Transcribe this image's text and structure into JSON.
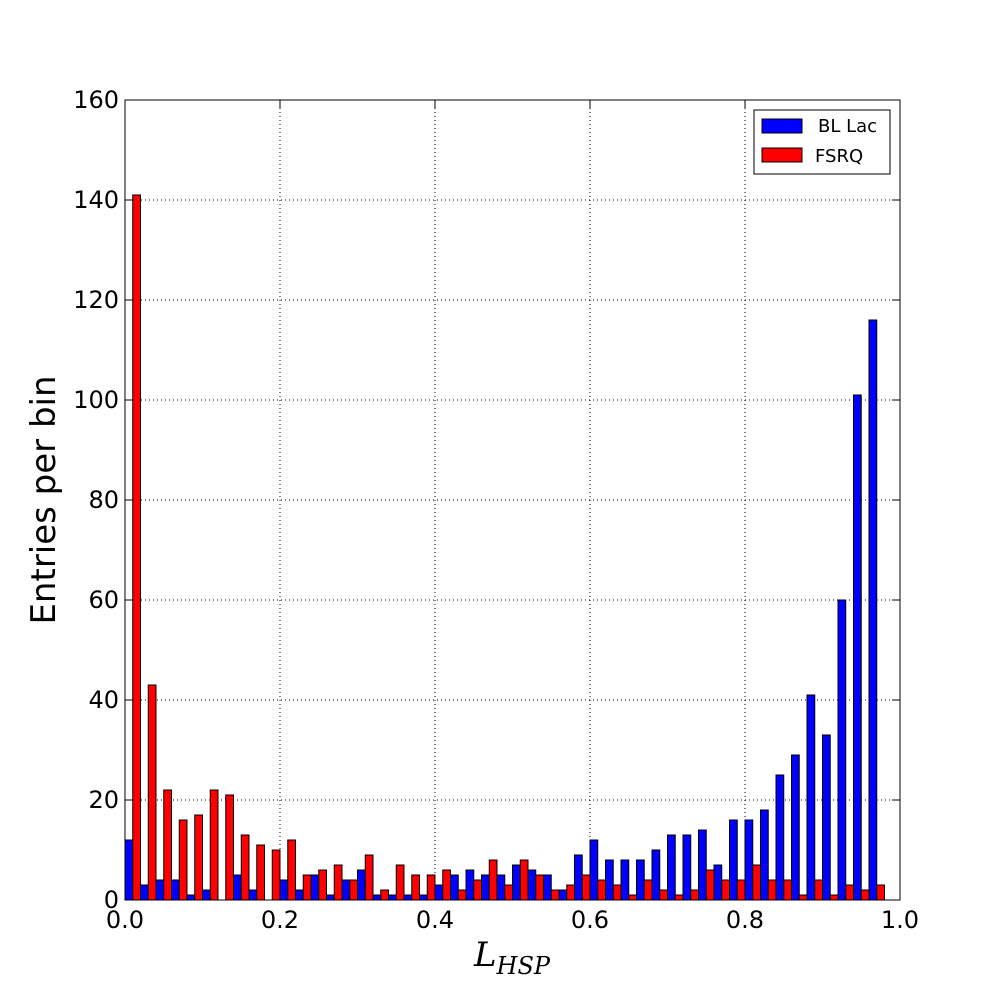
{
  "chart_data": {
    "type": "bar",
    "title": "",
    "xlabel": "L",
    "xlabel_subscript": "HSP",
    "ylabel": "Entries per bin",
    "xlim": [
      0.0,
      1.0
    ],
    "ylim": [
      0,
      160
    ],
    "xticks": [
      "0.0",
      "0.2",
      "0.4",
      "0.6",
      "0.8",
      "1.0"
    ],
    "yticks": [
      "0",
      "20",
      "40",
      "60",
      "80",
      "100",
      "120",
      "140",
      "160"
    ],
    "grid": true,
    "legend_position": "top-right",
    "bin_width": 0.02,
    "series": [
      {
        "name": "BL Lac",
        "color": "#0000ff",
        "values": [
          12,
          3,
          4,
          4,
          1,
          2,
          0,
          5,
          2,
          0,
          4,
          2,
          5,
          1,
          4,
          6,
          1,
          1,
          1,
          1,
          3,
          5,
          6,
          5,
          5,
          7,
          6,
          5,
          2,
          9,
          12,
          8,
          8,
          8,
          10,
          13,
          13,
          14,
          7,
          16,
          16,
          18,
          25,
          29,
          41,
          33,
          60,
          101,
          116,
          0
        ]
      },
      {
        "name": "FSRQ",
        "color": "#ff0000",
        "values": [
          141,
          43,
          22,
          16,
          17,
          22,
          21,
          13,
          11,
          10,
          12,
          5,
          6,
          7,
          4,
          9,
          2,
          7,
          5,
          5,
          6,
          2,
          4,
          8,
          3,
          8,
          5,
          2,
          3,
          5,
          4,
          3,
          1,
          4,
          2,
          1,
          2,
          6,
          4,
          4,
          7,
          4,
          4,
          1,
          4,
          1,
          3,
          2,
          3,
          0
        ]
      }
    ]
  }
}
